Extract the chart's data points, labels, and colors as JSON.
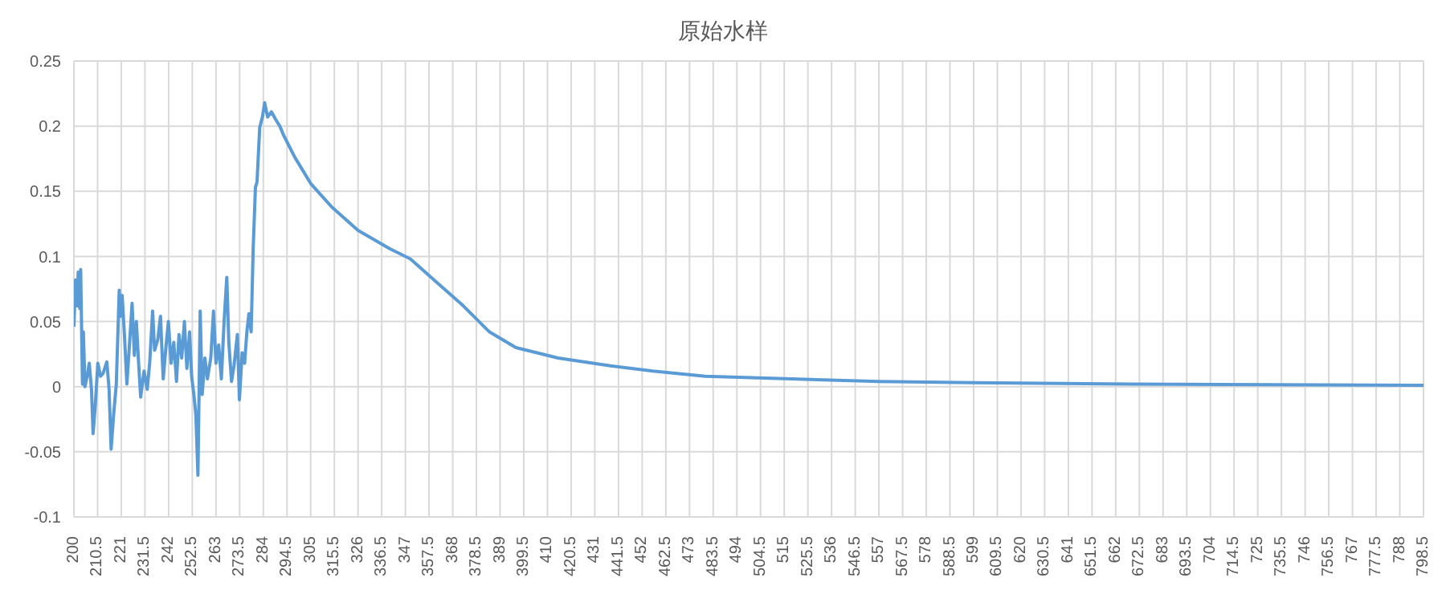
{
  "chart_data": {
    "type": "line",
    "title": "原始水样",
    "series": [
      {
        "color": "#5b9bd5",
        "x": [
          200,
          200.7,
          201.4,
          201.9,
          202.6,
          203,
          203.8,
          204.2,
          204.9,
          206.1,
          206.8,
          207.8,
          208.5,
          209.5,
          210.6,
          211.8,
          212.9,
          214.6,
          215.6,
          216.5,
          217.6,
          218.8,
          220.1,
          220.7,
          221.4,
          222.4,
          223.5,
          224.7,
          225.8,
          226.8,
          227.7,
          228.7,
          229.6,
          231.1,
          232.5,
          233.6,
          234.9,
          235.8,
          237.2,
          238.4,
          239.6,
          240.8,
          241.9,
          243.1,
          244.3,
          245.5,
          246.6,
          247.8,
          249,
          250.1,
          251.3,
          252.2,
          253.2,
          254.1,
          255,
          256,
          256.9,
          258.1,
          259.2,
          260.7,
          261.9,
          263,
          264.2,
          265.4,
          266.6,
          267.8,
          268.7,
          269.9,
          271,
          272.5,
          273.4,
          274.6,
          275.7,
          276.7,
          277.6,
          278.6,
          279.5,
          280.5,
          281.2,
          282.4,
          283.6,
          284.6,
          285.9,
          287.6,
          289.5,
          291.3,
          293,
          298,
          305,
          314.3,
          326,
          340,
          349.3,
          361,
          372.7,
          384.3,
          396,
          414.7,
          438,
          456.7,
          480,
          557,
          599,
          669,
          798.5
        ],
        "values": [
          0.046,
          0.082,
          0.062,
          0.088,
          0.06,
          0.09,
          0.002,
          0.042,
          0,
          0.01,
          0.018,
          -0.002,
          -0.036,
          -0.014,
          0.018,
          0.008,
          0.01,
          0.019,
          -0.002,
          -0.048,
          -0.022,
          0.002,
          0.074,
          0.054,
          0.07,
          0.04,
          0.002,
          0.034,
          0.064,
          0.024,
          0.05,
          0.018,
          -0.008,
          0.012,
          -0.002,
          0.018,
          0.058,
          0.028,
          0.036,
          0.054,
          0.006,
          0.03,
          0.05,
          0.018,
          0.034,
          0.004,
          0.04,
          0.022,
          0.05,
          0.014,
          0.042,
          0.008,
          -0.006,
          -0.022,
          -0.068,
          0.058,
          -0.006,
          0.022,
          0.006,
          0.022,
          0.058,
          0.018,
          0.032,
          0.006,
          0.05,
          0.084,
          0.034,
          0.004,
          0.016,
          0.04,
          -0.01,
          0.026,
          0.018,
          0.042,
          0.056,
          0.042,
          0.106,
          0.153,
          0.157,
          0.199,
          0.207,
          0.218,
          0.207,
          0.211,
          0.205,
          0.2,
          0.193,
          0.176,
          0.156,
          0.138,
          0.12,
          0.106,
          0.098,
          0.08,
          0.062,
          0.042,
          0.03,
          0.022,
          0.016,
          0.012,
          0.008,
          0.004,
          0.003,
          0.002,
          0.001
        ]
      }
    ],
    "xlim": [
      200,
      798.5
    ],
    "xticks": [
      200,
      210.5,
      221,
      231.5,
      242,
      252.5,
      263,
      273.5,
      284,
      294.5,
      305,
      315.5,
      326,
      336.5,
      347,
      357.5,
      368,
      378.5,
      389,
      399.5,
      410,
      420.5,
      431,
      441.5,
      452,
      462.5,
      473,
      483.5,
      494,
      504.5,
      515,
      525.5,
      536,
      546.5,
      557,
      567.5,
      578,
      588.5,
      599,
      609.5,
      620,
      630.5,
      641,
      651.5,
      662,
      672.5,
      683,
      693.5,
      704,
      714.5,
      725,
      735.5,
      746,
      756.5,
      767,
      777.5,
      788,
      798.5
    ],
    "ylim": [
      -0.1,
      0.25
    ],
    "yticks": [
      -0.1,
      -0.05,
      0,
      0.05,
      0.1,
      0.15,
      0.2,
      0.25
    ],
    "grid": true,
    "marker": "none",
    "line_style": "solid"
  }
}
